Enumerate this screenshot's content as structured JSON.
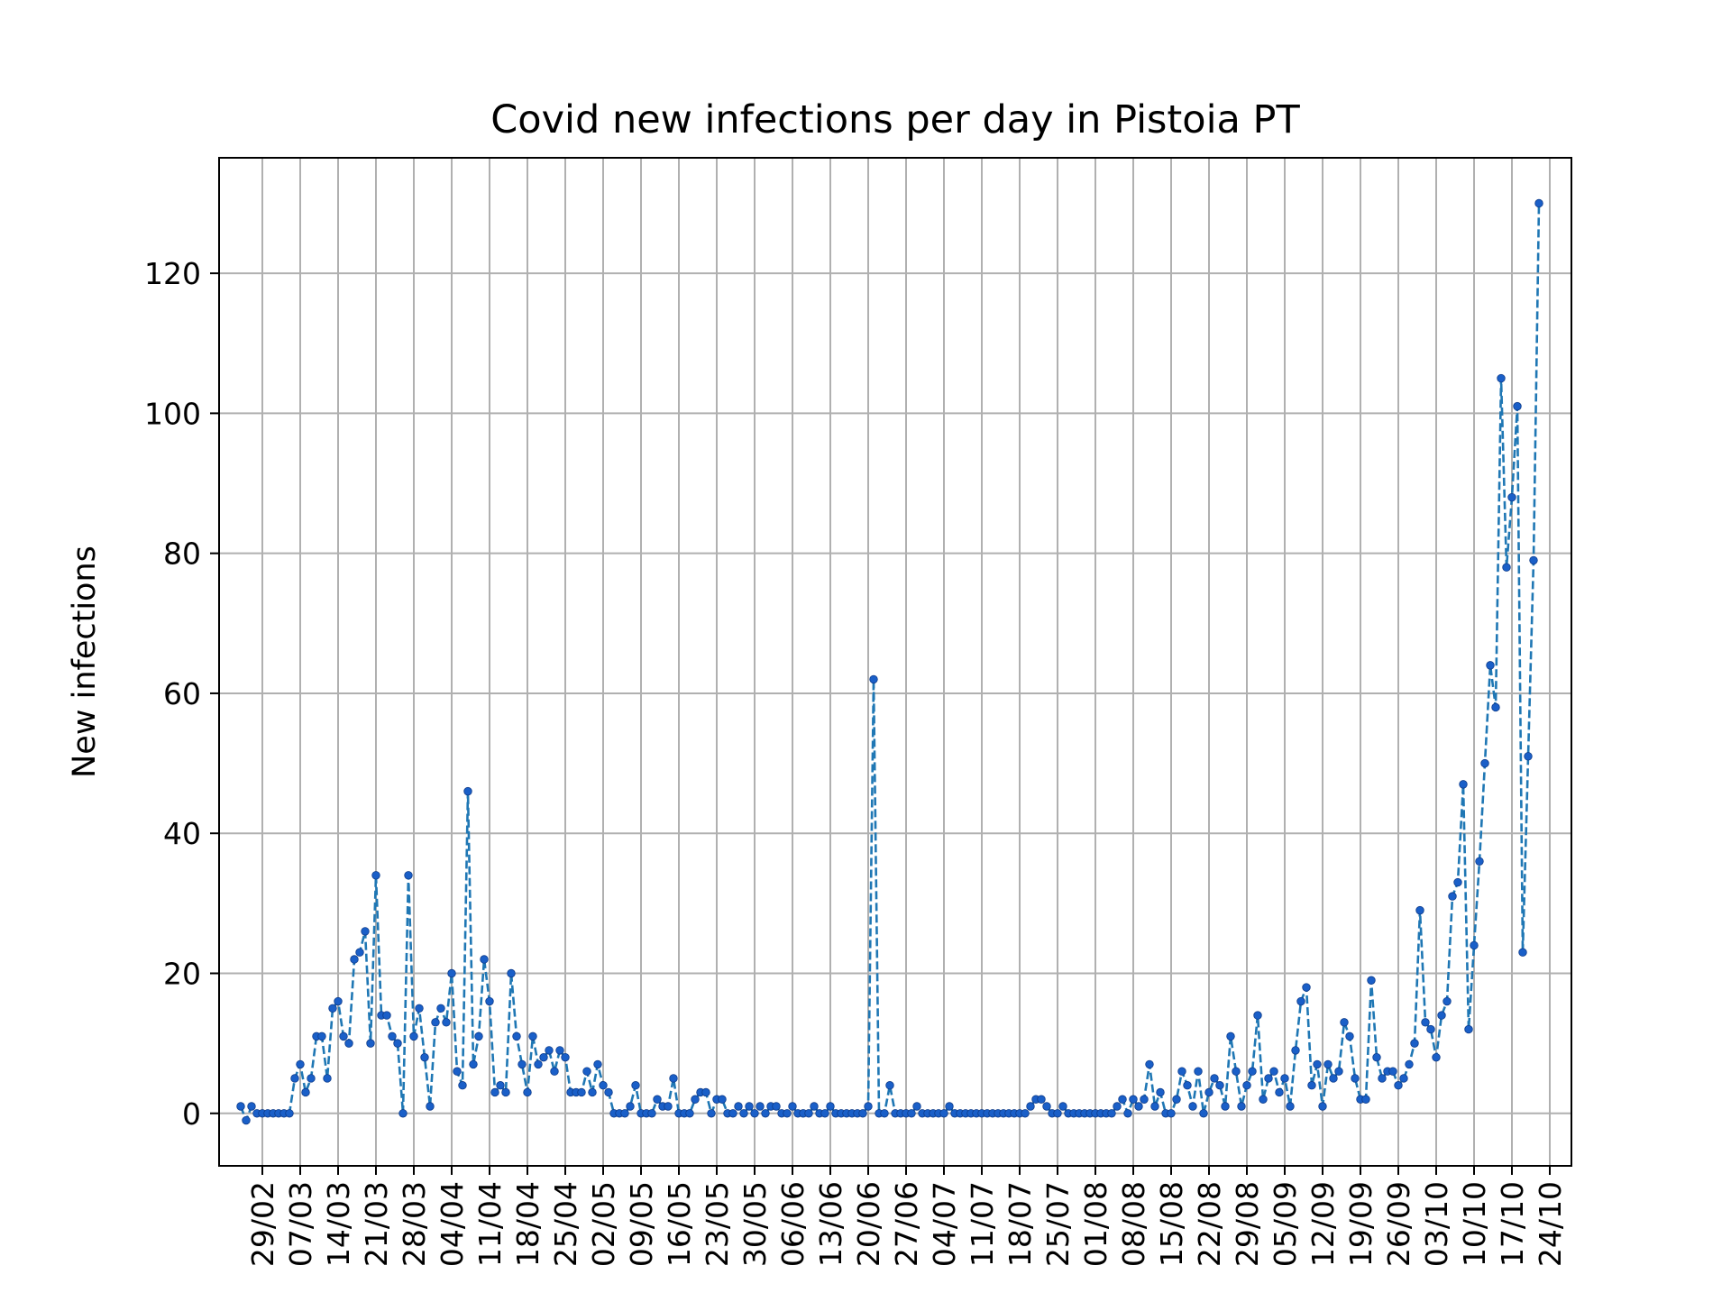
{
  "chart_data": {
    "type": "line",
    "title": "Covid new infections per day in Pistoia PT",
    "xlabel": "",
    "ylabel": "New infections",
    "ylim": [
      -7.5,
      136.5
    ],
    "xlim": [
      "2020-02-21",
      "2020-10-28"
    ],
    "yticks": [
      0,
      20,
      40,
      60,
      80,
      100,
      120
    ],
    "xticks": [
      "29/02",
      "07/03",
      "14/03",
      "21/03",
      "28/03",
      "04/04",
      "11/04",
      "18/04",
      "25/04",
      "02/05",
      "09/05",
      "16/05",
      "23/05",
      "30/05",
      "06/06",
      "13/06",
      "20/06",
      "27/06",
      "04/07",
      "11/07",
      "18/07",
      "25/07",
      "01/08",
      "08/08",
      "15/08",
      "22/08",
      "29/08",
      "05/09",
      "12/09",
      "19/09",
      "26/09",
      "03/10",
      "10/10",
      "17/10",
      "24/10"
    ],
    "xtick_dates": [
      "2020-02-29",
      "2020-03-07",
      "2020-03-14",
      "2020-03-21",
      "2020-03-28",
      "2020-04-04",
      "2020-04-11",
      "2020-04-18",
      "2020-04-25",
      "2020-05-02",
      "2020-05-09",
      "2020-05-16",
      "2020-05-23",
      "2020-05-30",
      "2020-06-06",
      "2020-06-13",
      "2020-06-20",
      "2020-06-27",
      "2020-07-04",
      "2020-07-11",
      "2020-07-18",
      "2020-07-25",
      "2020-08-01",
      "2020-08-08",
      "2020-08-15",
      "2020-08-22",
      "2020-08-29",
      "2020-09-05",
      "2020-09-12",
      "2020-09-19",
      "2020-09-26",
      "2020-10-03",
      "2020-10-10",
      "2020-10-17",
      "2020-10-24"
    ],
    "grid": true,
    "line_style": "dashed",
    "marker": "dot",
    "colors": {
      "line": "#1f77b4",
      "marker": "#1a5fc8",
      "grid": "#b0b0b0",
      "axes": "#000000"
    },
    "series": [
      {
        "start_date": "2020-02-25",
        "values": [
          1,
          -1,
          1,
          0,
          0,
          0,
          0,
          0,
          0,
          0,
          5,
          7,
          3,
          5,
          11,
          11,
          5,
          15,
          16,
          11,
          10,
          22,
          23,
          26,
          10,
          34,
          14,
          14,
          11,
          10,
          0,
          34,
          11,
          15,
          8,
          1,
          13,
          15,
          13,
          20,
          6,
          4,
          46,
          7,
          11,
          22,
          16,
          3,
          4,
          3,
          20,
          11,
          7,
          3,
          11,
          7,
          8,
          9,
          6,
          9,
          8,
          3,
          3,
          3,
          6,
          3,
          7,
          4,
          3,
          0,
          0,
          0,
          1,
          4,
          0,
          0,
          0,
          2,
          1,
          1,
          5,
          0,
          0,
          0,
          2,
          3,
          3,
          0,
          2,
          2,
          0,
          0,
          1,
          0,
          1,
          0,
          1,
          0,
          1,
          1,
          0,
          0,
          1,
          0,
          0,
          0,
          1,
          0,
          0,
          1,
          0,
          0,
          0,
          0,
          0,
          0,
          1,
          62,
          0,
          0,
          4,
          0,
          0,
          0,
          0,
          1,
          0,
          0,
          0,
          0,
          0,
          1,
          0,
          0,
          0,
          0,
          0,
          0,
          0,
          0,
          0,
          0,
          0,
          0,
          0,
          0,
          1,
          2,
          2,
          1,
          0,
          0,
          1,
          0,
          0,
          0,
          0,
          0,
          0,
          0,
          0,
          0,
          1,
          2,
          0,
          2,
          1,
          2,
          7,
          1,
          3,
          0,
          0,
          2,
          6,
          4,
          1,
          6,
          0,
          3,
          5,
          4,
          1,
          11,
          6,
          1,
          4,
          6,
          14,
          2,
          5,
          6,
          3,
          5,
          1,
          9,
          16,
          18,
          4,
          7,
          1,
          7,
          5,
          6,
          13,
          11,
          5,
          2,
          2,
          19,
          8,
          5,
          6,
          6,
          4,
          5,
          7,
          10,
          29,
          13,
          12,
          8,
          14,
          16,
          31,
          33,
          47,
          12,
          24,
          36,
          50,
          64,
          58,
          105,
          78,
          88,
          101,
          23,
          51,
          79,
          130
        ]
      }
    ]
  }
}
